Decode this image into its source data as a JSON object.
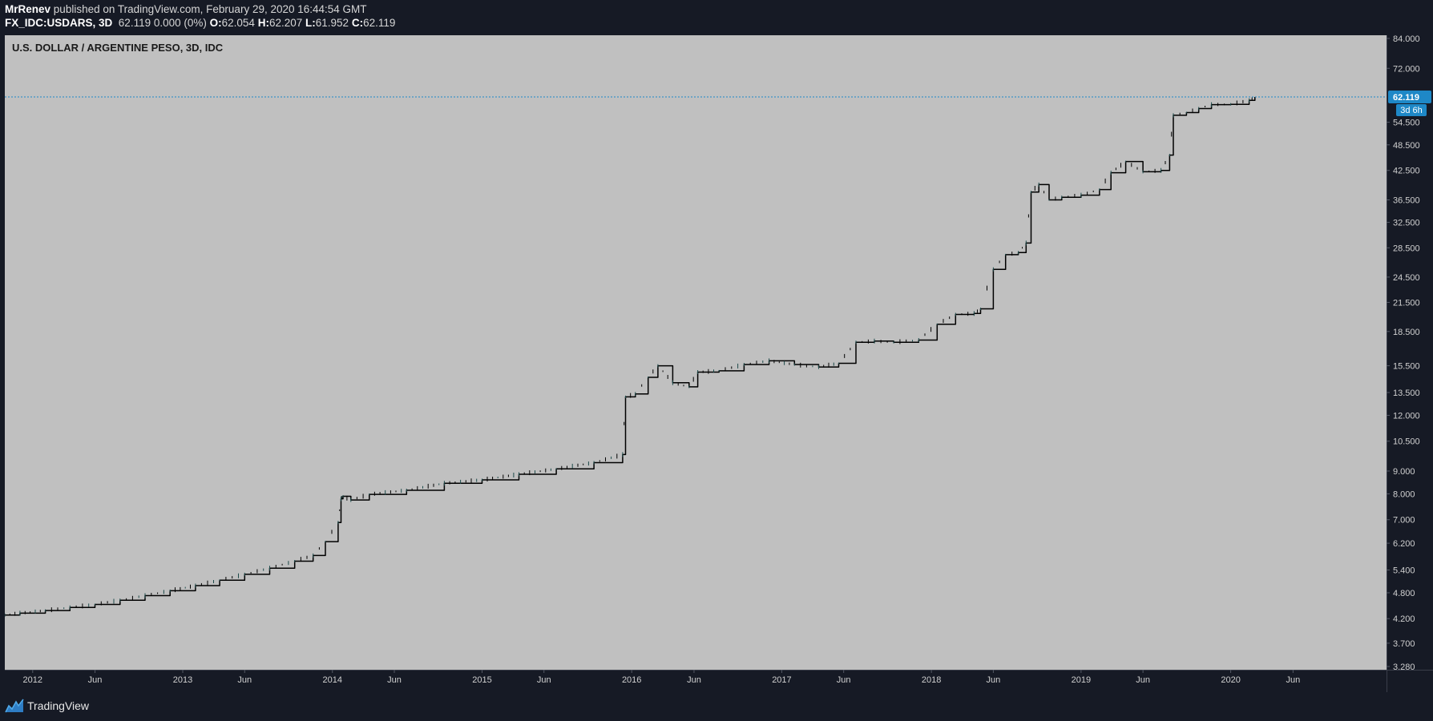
{
  "header": {
    "author": "MrRenev",
    "published_text": "published on TradingView.com, February 29, 2020 16:44:54 GMT",
    "symbol": "FX_IDC:USDARS, 3D",
    "price_line": "62.119 0.000 (0%)",
    "ohlc": [
      {
        "label": "O:",
        "value": "62.054"
      },
      {
        "label": "H:",
        "value": "62.207"
      },
      {
        "label": "L:",
        "value": "61.952"
      },
      {
        "label": "C:",
        "value": "62.119"
      }
    ]
  },
  "footer": {
    "brand": "TradingView",
    "logo_icon": "tradingview-logo-icon"
  },
  "colors": {
    "page_bg": "#161a25",
    "plot_bg": "#c0c0c0",
    "line": "#000000",
    "accent": "#1e88c7",
    "price_label_bg": "#1e88c7",
    "axis_text": "#d0d0d0"
  },
  "chart_data": {
    "type": "line",
    "title": "U.S. DOLLAR / ARGENTINE PESO, 3D, IDC",
    "xlabel": "",
    "ylabel": "",
    "y_scale": "log",
    "grid": false,
    "x_tick_labels": [
      "2012",
      "Jun",
      "2013",
      "Jun",
      "2014",
      "Jun",
      "2015",
      "Jun",
      "2016",
      "Jun",
      "2017",
      "Jun",
      "2018",
      "Jun",
      "2019",
      "Jun",
      "2020",
      "Jun"
    ],
    "x_tick_dates": [
      "2012-01-01",
      "2012-06-01",
      "2013-01-01",
      "2013-06-01",
      "2014-01-01",
      "2014-06-01",
      "2015-01-01",
      "2015-06-01",
      "2016-01-01",
      "2016-06-01",
      "2017-01-01",
      "2017-06-01",
      "2018-01-01",
      "2018-06-01",
      "2019-01-01",
      "2019-06-01",
      "2020-01-01",
      "2020-06-01"
    ],
    "y_tick_labels": [
      "84.000",
      "72.000",
      "54.500",
      "48.500",
      "42.500",
      "36.500",
      "32.500",
      "28.500",
      "24.500",
      "21.500",
      "18.500",
      "15.500",
      "13.500",
      "12.000",
      "10.500",
      "9.000",
      "8.000",
      "7.000",
      "6.200",
      "5.400",
      "4.800",
      "4.200",
      "3.700",
      "3.280"
    ],
    "ylim": [
      3.28,
      84.0
    ],
    "xlim": [
      "2011-10-25",
      "2021-01-15"
    ],
    "last_price": {
      "value": 62.119,
      "label": "62.119"
    },
    "countdown_label": "3d 6h",
    "series": [
      {
        "x": [
          "2011-10-25",
          "2011-12-01",
          "2012-02-01",
          "2012-04-01",
          "2012-06-01",
          "2012-08-01",
          "2012-10-01",
          "2012-12-01",
          "2013-02-01",
          "2013-04-01",
          "2013-06-01",
          "2013-08-01",
          "2013-10-01",
          "2013-11-15",
          "2013-12-15",
          "2014-01-15",
          "2014-01-22",
          "2014-01-27",
          "2014-02-15",
          "2014-04-01",
          "2014-07-01",
          "2014-10-01",
          "2015-01-01",
          "2015-04-01",
          "2015-07-01",
          "2015-10-01",
          "2015-12-10",
          "2015-12-17",
          "2016-01-10",
          "2016-02-10",
          "2016-03-05",
          "2016-04-10",
          "2016-05-20",
          "2016-06-10",
          "2016-08-01",
          "2016-10-01",
          "2016-12-01",
          "2017-02-01",
          "2017-04-01",
          "2017-05-20",
          "2017-07-01",
          "2017-08-15",
          "2017-10-01",
          "2017-12-01",
          "2018-01-15",
          "2018-03-01",
          "2018-04-15",
          "2018-05-01",
          "2018-06-01",
          "2018-07-01",
          "2018-08-01",
          "2018-08-20",
          "2018-09-01",
          "2018-09-20",
          "2018-10-15",
          "2018-11-15",
          "2019-01-01",
          "2019-02-15",
          "2019-03-15",
          "2019-04-20",
          "2019-06-01",
          "2019-07-15",
          "2019-08-05",
          "2019-08-14",
          "2019-09-15",
          "2019-10-15",
          "2019-11-15",
          "2020-01-01",
          "2020-02-15",
          "2020-02-29"
        ],
        "y": [
          4.28,
          4.32,
          4.38,
          4.45,
          4.52,
          4.62,
          4.73,
          4.85,
          4.98,
          5.12,
          5.28,
          5.45,
          5.65,
          5.82,
          6.25,
          6.9,
          7.8,
          7.9,
          7.75,
          7.98,
          8.15,
          8.45,
          8.6,
          8.85,
          9.1,
          9.4,
          9.8,
          13.2,
          13.4,
          14.6,
          15.5,
          14.2,
          13.9,
          15.0,
          15.1,
          15.6,
          15.9,
          15.6,
          15.4,
          15.7,
          17.5,
          17.6,
          17.5,
          17.7,
          19.2,
          20.2,
          20.3,
          20.8,
          25.5,
          27.5,
          27.8,
          29.2,
          38.0,
          39.5,
          36.5,
          37.0,
          37.4,
          38.5,
          42.0,
          44.5,
          42.2,
          42.5,
          46.0,
          56.5,
          57.3,
          58.5,
          59.7,
          59.8,
          61.0,
          62.119
        ]
      }
    ]
  }
}
